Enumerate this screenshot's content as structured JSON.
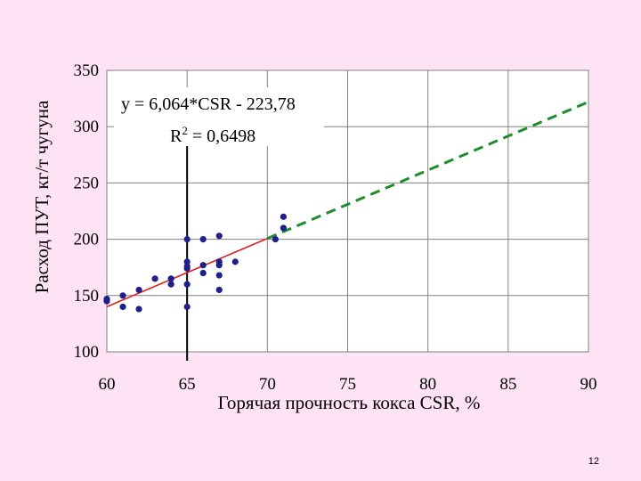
{
  "page_number": "12",
  "chart_data": {
    "type": "scatter",
    "title": "",
    "xlabel": "Горячая прочность кокса CSR, %",
    "ylabel": "Расход ПУТ, кг/т чугуна",
    "xlim": [
      60,
      90
    ],
    "ylim": [
      100,
      350
    ],
    "x_ticks": [
      "60",
      "65",
      "70",
      "75",
      "80",
      "85",
      "90"
    ],
    "y_ticks": [
      "100",
      "150",
      "200",
      "250",
      "300",
      "350"
    ],
    "grid": true,
    "legend": "none",
    "series": [
      {
        "type": "scatter",
        "color": "#1f1f8c",
        "points": [
          [
            60,
            147
          ],
          [
            60,
            145
          ],
          [
            61,
            150
          ],
          [
            61,
            140
          ],
          [
            62,
            155
          ],
          [
            62,
            138
          ],
          [
            63,
            165
          ],
          [
            64,
            165
          ],
          [
            64,
            160
          ],
          [
            65,
            200
          ],
          [
            65,
            180
          ],
          [
            65,
            176
          ],
          [
            65,
            174
          ],
          [
            65,
            160
          ],
          [
            65,
            140
          ],
          [
            66,
            200
          ],
          [
            66,
            177
          ],
          [
            66,
            170
          ],
          [
            67,
            203
          ],
          [
            67,
            180
          ],
          [
            67,
            177
          ],
          [
            67,
            168
          ],
          [
            67,
            155
          ],
          [
            68,
            180
          ],
          [
            70.5,
            200
          ],
          [
            71,
            220
          ],
          [
            71,
            210
          ]
        ]
      }
    ],
    "trendline": {
      "slope": 6.064,
      "intercept": -223.78,
      "fit_range": [
        60,
        70
      ],
      "extrapolation_range": [
        70,
        90
      ],
      "fit_color": "#e0201a",
      "extrapolation_color": "#1f8c2a",
      "extrapolation_style": "dashed"
    },
    "vertical_marker": {
      "x": 65,
      "color": "#000000"
    },
    "annotations": {
      "equation": "y = 6,064*CSR - 223,78",
      "r2_label": "R",
      "r2_exp": "2",
      "r2_value": " = 0,6498"
    }
  }
}
